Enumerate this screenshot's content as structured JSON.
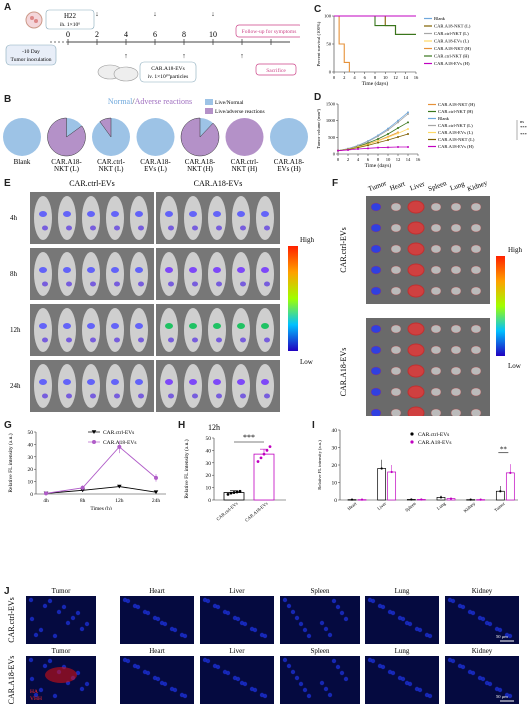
{
  "panels": {
    "A": {
      "letter": "A",
      "h22": "H22",
      "h22_dose": "ih. 1×10⁶",
      "tumor_day": "-10 Day",
      "tumor_label": "Tumor inoculation",
      "days": [
        "0",
        "2",
        "4",
        "6",
        "8",
        "10",
        "12",
        "14"
      ],
      "followup": "Follow-up for symptoms",
      "sacrifice": "Sacrifice",
      "treatment": "CAR.A18-EVs",
      "treatment_dose": "iv. 1×10¹⁰particles"
    },
    "B": {
      "letter": "B",
      "title_normal": "Normal",
      "title_sep": "/",
      "title_adverse": "Adverse reactions",
      "legend": [
        "Live/Normal",
        "Live/adverse reactions"
      ],
      "colors": {
        "normal": "#9dc3e6",
        "adverse": "#b491c8"
      },
      "pies": [
        {
          "label": "Blank",
          "adverse_fraction": 0
        },
        {
          "label": "CAR.A18-NKT (L)",
          "adverse_fraction": 0.85
        },
        {
          "label": "CAR.ctrl-NKT (L)",
          "adverse_fraction": 0.1
        },
        {
          "label": "CAR.A18-EVs (L)",
          "adverse_fraction": 0
        },
        {
          "label": "CAR.A18-NKT (H)",
          "adverse_fraction": 0.88
        },
        {
          "label": "CAR.ctrl-NKT (H)",
          "adverse_fraction": 1
        },
        {
          "label": "CAR.A18-EVs (H)",
          "adverse_fraction": 0
        }
      ]
    },
    "E": {
      "letter": "E",
      "groups": [
        "CAR.ctrl-EVs",
        "CAR.A18-EVs"
      ],
      "times": [
        "4h",
        "8h",
        "12h",
        "24h"
      ],
      "scale_high": "High",
      "scale_low": "Low"
    },
    "F": {
      "letter": "F",
      "organs": [
        "Tumor",
        "Heart",
        "Liver",
        "Spleen",
        "Lung",
        "Kidney"
      ],
      "groups": [
        "CAR.ctrl-EVs",
        "CAR.A18-EVs"
      ],
      "scale_high": "High",
      "scale_low": "Low"
    },
    "J": {
      "letter": "J",
      "organs": [
        "Tumor",
        "Heart",
        "Liver",
        "Spleen",
        "Lung",
        "Kidney"
      ],
      "groups": [
        "CAR.ctrl-EVs",
        "CAR.A18-EVs"
      ],
      "scale_bar": "50 μm",
      "stain": [
        "HA",
        "VHH"
      ]
    }
  },
  "chart_data": [
    {
      "id": "C",
      "type": "line",
      "ylabel": "Percent survival (100%)",
      "xlabel": "Time (days)",
      "xlim": [
        0,
        16
      ],
      "ylim": [
        0,
        100
      ],
      "xticks": [
        0,
        2,
        4,
        6,
        8,
        10,
        12,
        14,
        16
      ],
      "yticks": [
        0,
        50,
        100
      ],
      "series": [
        {
          "name": "Blank",
          "color": "#6fa8dc",
          "x": [
            0,
            16
          ],
          "y": [
            100,
            100
          ]
        },
        {
          "name": "CAR.A18-NKT (L)",
          "color": "#7f6000",
          "x": [
            0,
            10,
            10,
            12,
            12,
            16
          ],
          "y": [
            100,
            100,
            83,
            83,
            67,
            67
          ]
        },
        {
          "name": "CAR.ctrl-NKT (L)",
          "color": "#a6a6a6",
          "x": [
            0,
            16
          ],
          "y": [
            100,
            100
          ]
        },
        {
          "name": "CAR.A18-EVs (L)",
          "color": "#ffd966",
          "x": [
            0,
            16
          ],
          "y": [
            100,
            100
          ]
        },
        {
          "name": "CAR.A18-NKT (H)",
          "color": "#e69138",
          "x": [
            0,
            1,
            1,
            2,
            2,
            3,
            3
          ],
          "y": [
            100,
            100,
            50,
            50,
            17,
            17,
            0
          ]
        },
        {
          "name": "CAR.ctrl-NKT (H)",
          "color": "#38761d",
          "x": [
            0,
            8,
            8,
            12,
            12,
            16
          ],
          "y": [
            100,
            100,
            83,
            83,
            67,
            67
          ]
        },
        {
          "name": "CAR.A18-EVs (H)",
          "color": "#c000c0",
          "x": [
            0,
            16
          ],
          "y": [
            100,
            100
          ]
        }
      ]
    },
    {
      "id": "D",
      "type": "line",
      "ylabel": "Tumor volume (mm³)",
      "xlabel": "Time (days)",
      "xlim": [
        0,
        16
      ],
      "ylim": [
        0,
        1500
      ],
      "xticks": [
        0,
        2,
        4,
        6,
        8,
        10,
        12,
        14,
        16
      ],
      "yticks": [
        0,
        500,
        1000,
        1500
      ],
      "significance": [
        "ns",
        "***",
        "***"
      ],
      "series": [
        {
          "name": "CAR.A18-NKT (H)",
          "color": "#e69138",
          "x": [
            0,
            2,
            4,
            6,
            8,
            10,
            12
          ],
          "y": [
            100,
            140,
            210,
            300,
            400,
            520,
            650
          ]
        },
        {
          "name": "CAR.ctrl-NKT (H)",
          "color": "#38761d",
          "x": [
            0,
            2,
            4,
            6,
            8,
            10,
            12,
            14
          ],
          "y": [
            100,
            150,
            230,
            330,
            450,
            600,
            780,
            950
          ]
        },
        {
          "name": "Blank",
          "color": "#6fa8dc",
          "x": [
            0,
            2,
            4,
            6,
            8,
            10,
            12,
            14
          ],
          "y": [
            100,
            160,
            260,
            390,
            560,
            760,
            1000,
            1250
          ]
        },
        {
          "name": "CAR.ctrl-NKT (L)",
          "color": "#a6a6a6",
          "x": [
            0,
            2,
            4,
            6,
            8,
            10,
            12,
            14
          ],
          "y": [
            100,
            155,
            250,
            370,
            530,
            720,
            950,
            1200
          ]
        },
        {
          "name": "CAR.A18-EVs (L)",
          "color": "#ffd966",
          "x": [
            0,
            2,
            4,
            6,
            8,
            10,
            12,
            14
          ],
          "y": [
            100,
            140,
            210,
            290,
            390,
            500,
            620,
            750
          ]
        },
        {
          "name": "CAR.A18-NKT (L)",
          "color": "#7f6000",
          "x": [
            0,
            2,
            4,
            6,
            8,
            10,
            12,
            14
          ],
          "y": [
            100,
            135,
            190,
            260,
            340,
            420,
            510,
            600
          ]
        },
        {
          "name": "CAR.A18-EVs (H)",
          "color": "#c000c0",
          "x": [
            0,
            2,
            4,
            6,
            8,
            10,
            12,
            14
          ],
          "y": [
            100,
            120,
            150,
            170,
            190,
            200,
            210,
            210
          ]
        }
      ]
    },
    {
      "id": "G",
      "type": "line",
      "ylabel": "Relative FL intensity (a.u.)",
      "xlabel": "Times (h)",
      "categories": [
        "4h",
        "8h",
        "12h",
        "24h"
      ],
      "ylim": [
        0,
        50
      ],
      "yticks": [
        0,
        10,
        20,
        30,
        40,
        50
      ],
      "series": [
        {
          "name": "CAR.ctrl-EVs",
          "color": "#000000",
          "marker": "triangle-down",
          "values": [
            0.5,
            3,
            6,
            1.5
          ],
          "errors": [
            0.3,
            1,
            1,
            0.5
          ]
        },
        {
          "name": "CAR.A18-EVs",
          "color": "#b05cc8",
          "marker": "circle",
          "values": [
            0.5,
            5,
            38,
            13
          ],
          "errors": [
            0.3,
            2,
            5,
            3
          ]
        }
      ]
    },
    {
      "id": "H",
      "type": "bar",
      "title": "12h",
      "ylabel": "Relative FL intensity (a.u.)",
      "categories": [
        "CAR.ctrl-EVs",
        "CAR.A18-EVs"
      ],
      "values": [
        6,
        37
      ],
      "errors": [
        1.5,
        4
      ],
      "points": [
        [
          4.5,
          5.5,
          6,
          6.5,
          7
        ],
        [
          31,
          34,
          37,
          40,
          43
        ]
      ],
      "ylim": [
        0,
        50
      ],
      "yticks": [
        0,
        10,
        20,
        30,
        40,
        50
      ],
      "significance": "***"
    },
    {
      "id": "I",
      "type": "bar",
      "ylabel": "Relative FL intensity (a.u.)",
      "categories": [
        "Heart",
        "Liver",
        "Spleen",
        "Lung",
        "Kidney",
        "Tumor"
      ],
      "series": [
        {
          "name": "CAR.ctrl-EVs",
          "color": "#000000",
          "values": [
            0.2,
            18,
            0.3,
            1.5,
            0.2,
            5
          ],
          "errors": [
            0.1,
            5,
            0.2,
            1,
            0.1,
            3
          ]
        },
        {
          "name": "CAR.A18-EVs",
          "color": "#c000c0",
          "values": [
            0.2,
            16,
            0.3,
            0.8,
            0.2,
            15.5
          ],
          "errors": [
            0.1,
            4,
            0.2,
            0.5,
            0.1,
            5
          ]
        }
      ],
      "ylim": [
        0,
        40
      ],
      "yticks": [
        0,
        10,
        20,
        30,
        40
      ],
      "significance": "**"
    }
  ]
}
